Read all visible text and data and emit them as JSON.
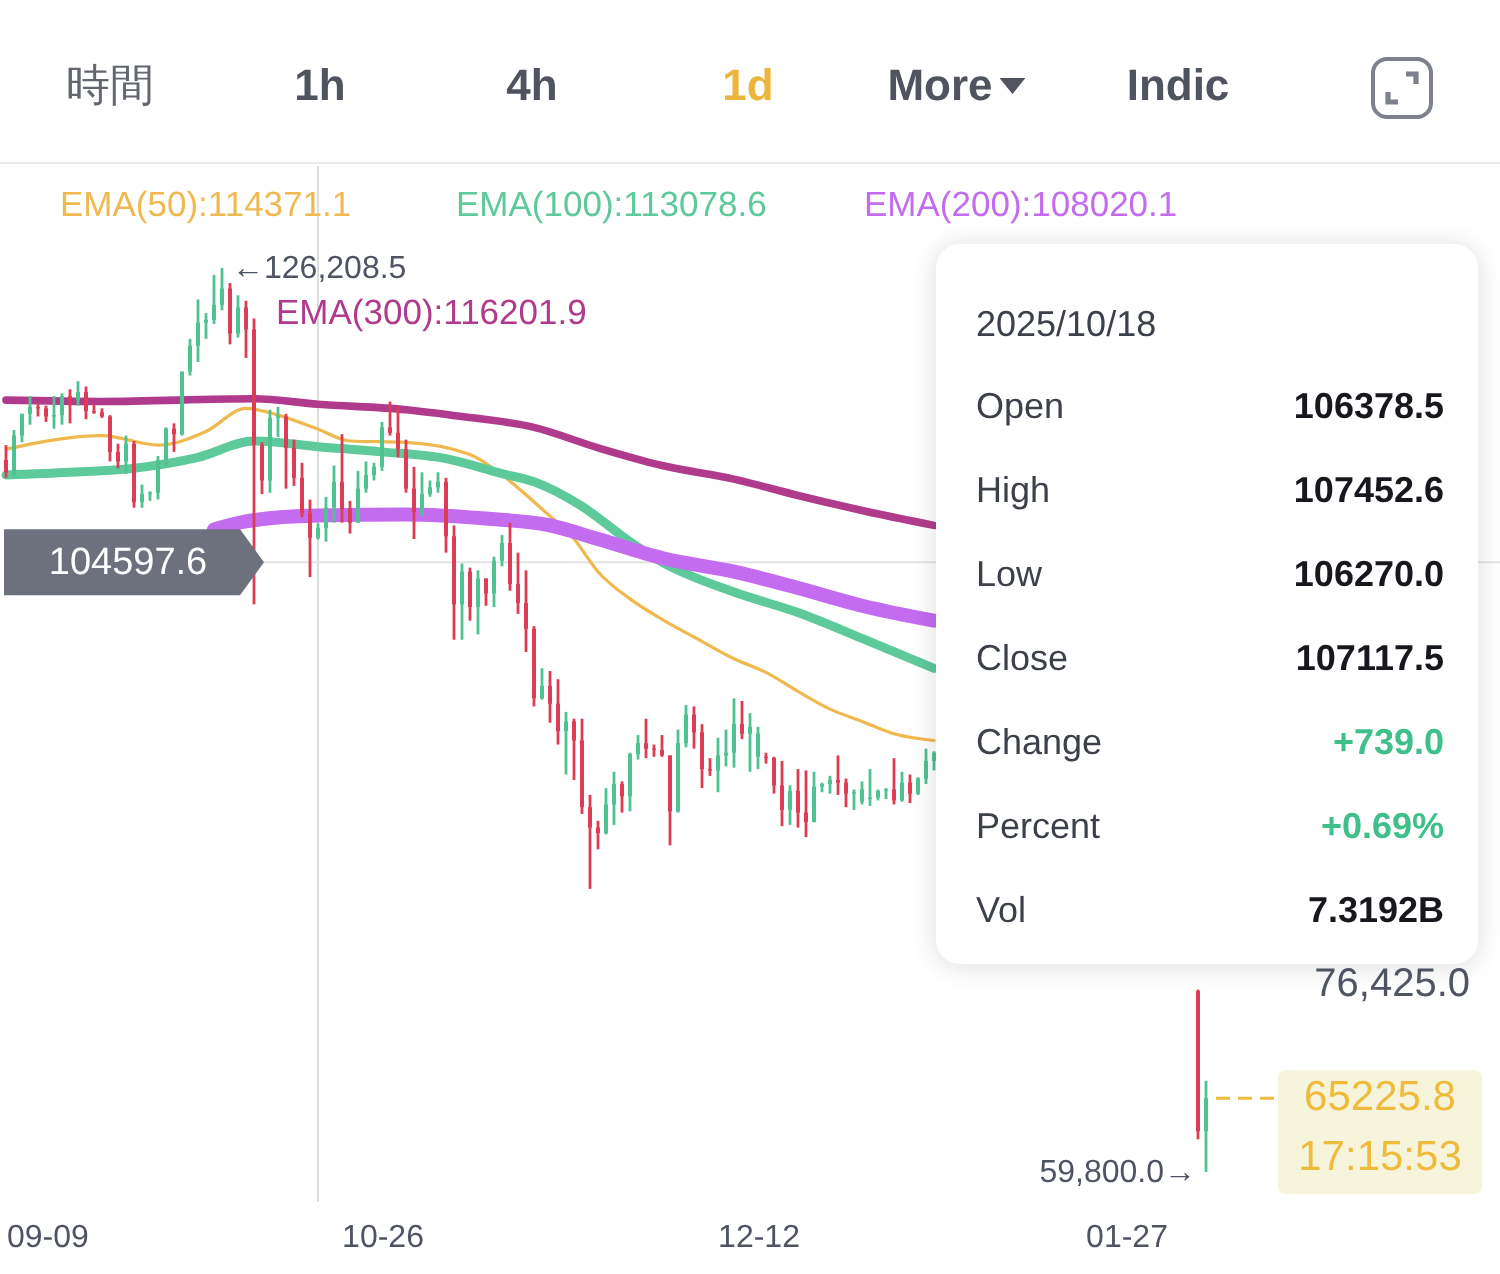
{
  "chart_data": {
    "type": "candlestick",
    "x": [
      "2025-09-09",
      "2025-09-10",
      "2025-09-11",
      "2025-09-12",
      "2025-09-13",
      "2025-09-14",
      "2025-09-15",
      "2025-09-16",
      "2025-09-17",
      "2025-09-18",
      "2025-09-19",
      "2025-09-20",
      "2025-09-21",
      "2025-09-22",
      "2025-09-23",
      "2025-09-24",
      "2025-09-25",
      "2025-09-26",
      "2025-09-27",
      "2025-09-28",
      "2025-09-29",
      "2025-09-30",
      "2025-10-01",
      "2025-10-02",
      "2025-10-03",
      "2025-10-04",
      "2025-10-05",
      "2025-10-06",
      "2025-10-07",
      "2025-10-08",
      "2025-10-09",
      "2025-10-10",
      "2025-10-11",
      "2025-10-12",
      "2025-10-13",
      "2025-10-14",
      "2025-10-15",
      "2025-10-16",
      "2025-10-17",
      "2025-10-18",
      "2025-10-19",
      "2025-10-20",
      "2025-10-21",
      "2025-10-22",
      "2025-10-23",
      "2025-10-24",
      "2025-10-25",
      "2025-10-26",
      "2025-10-27",
      "2025-10-28",
      "2025-10-29",
      "2025-10-30",
      "2025-10-31",
      "2025-11-01",
      "2025-11-02",
      "2025-11-03",
      "2025-11-04",
      "2025-11-05",
      "2025-11-06",
      "2025-11-07",
      "2025-11-08",
      "2025-11-09",
      "2025-11-10",
      "2025-11-11",
      "2025-11-12",
      "2025-11-13",
      "2025-11-14",
      "2025-11-15",
      "2025-11-16",
      "2025-11-17",
      "2025-11-18",
      "2025-11-19",
      "2025-11-20",
      "2025-11-21",
      "2025-11-22",
      "2025-11-23",
      "2025-11-24",
      "2025-11-25",
      "2025-11-26",
      "2025-11-27",
      "2025-11-28",
      "2025-11-29",
      "2025-11-30",
      "2025-12-01",
      "2025-12-02",
      "2025-12-03",
      "2025-12-04",
      "2025-12-05",
      "2025-12-06",
      "2025-12-07",
      "2025-12-08",
      "2025-12-09",
      "2025-12-10",
      "2025-12-11",
      "2025-12-12",
      "2025-12-13",
      "2025-12-14",
      "2025-12-15",
      "2025-12-16",
      "2025-12-17",
      "2025-12-18",
      "2025-12-19",
      "2025-12-20",
      "2025-12-21",
      "2025-12-22",
      "2025-12-23",
      "2025-12-24",
      "2025-12-25",
      "2025-12-26",
      "2025-12-27",
      "2025-12-28",
      "2025-12-29",
      "2025-12-30",
      "2025-12-31",
      "2026-01-01",
      "2026-01-02",
      "2026-01-03",
      "2026-02-05",
      "2026-02-06"
    ],
    "ohlc": [
      [
        112100,
        113200,
        110800,
        111200
      ],
      [
        111200,
        114300,
        110900,
        113900
      ],
      [
        113900,
        115500,
        113400,
        115500
      ],
      [
        115500,
        116800,
        114700,
        116000
      ],
      [
        116000,
        116300,
        115300,
        115900
      ],
      [
        115900,
        116100,
        114900,
        115300
      ],
      [
        115300,
        116800,
        114400,
        115400
      ],
      [
        115400,
        117000,
        114700,
        116800
      ],
      [
        116800,
        117300,
        114800,
        116500
      ],
      [
        116500,
        117900,
        116100,
        117100
      ],
      [
        117100,
        117500,
        115100,
        115700
      ],
      [
        115700,
        116200,
        115500,
        115600
      ],
      [
        115600,
        115900,
        115200,
        115300
      ],
      [
        115300,
        115400,
        112000,
        112700
      ],
      [
        112700,
        113300,
        111500,
        112000
      ],
      [
        112000,
        113900,
        111100,
        113300
      ],
      [
        113300,
        113500,
        108600,
        109000
      ],
      [
        109000,
        110300,
        108600,
        109600
      ],
      [
        109600,
        109800,
        109100,
        109700
      ],
      [
        109700,
        112400,
        109200,
        112100
      ],
      [
        112100,
        114500,
        111600,
        114400
      ],
      [
        114400,
        114800,
        112700,
        114000
      ],
      [
        114000,
        118600,
        113900,
        118600
      ],
      [
        118600,
        121000,
        118300,
        120500
      ],
      [
        120500,
        123900,
        119300,
        122200
      ],
      [
        122200,
        122900,
        121000,
        122400
      ],
      [
        122400,
        125700,
        122100,
        123500
      ],
      [
        123500,
        126208.5,
        123100,
        124700
      ],
      [
        124700,
        125100,
        120600,
        121400
      ],
      [
        121400,
        124200,
        121100,
        123300
      ],
      [
        123300,
        123800,
        119600,
        121700
      ],
      [
        121700,
        122500,
        101500,
        113200
      ],
      [
        113200,
        113400,
        109600,
        110600
      ],
      [
        110600,
        115800,
        109700,
        115200
      ],
      [
        115200,
        116000,
        113800,
        115300
      ],
      [
        115300,
        115500,
        110000,
        113000
      ],
      [
        113000,
        113600,
        110200,
        110800
      ],
      [
        110800,
        111900,
        107900,
        108200
      ],
      [
        108200,
        109200,
        103500,
        106400
      ],
      [
        106378.5,
        107452.6,
        106270.0,
        107117.5
      ],
      [
        107100,
        109400,
        106100,
        108600
      ],
      [
        108600,
        111700,
        107500,
        110500
      ],
      [
        110500,
        114000,
        107500,
        108500
      ],
      [
        108500,
        109100,
        106700,
        107500
      ],
      [
        107500,
        111300,
        107500,
        110000
      ],
      [
        110000,
        112000,
        109700,
        111000
      ],
      [
        111000,
        111900,
        110600,
        111600
      ],
      [
        111600,
        114900,
        111300,
        114500
      ],
      [
        114500,
        116400,
        113900,
        114100
      ],
      [
        114100,
        116100,
        112300,
        112900
      ],
      [
        112900,
        113600,
        109700,
        110000
      ],
      [
        110000,
        111600,
        106300,
        108300
      ],
      [
        108300,
        111200,
        108000,
        109600
      ],
      [
        109600,
        110600,
        109400,
        110100
      ],
      [
        110100,
        111200,
        109700,
        110500
      ],
      [
        110500,
        110800,
        105300,
        106500
      ],
      [
        106500,
        107300,
        98900,
        101500
      ],
      [
        101500,
        104500,
        98900,
        103900
      ],
      [
        103900,
        104200,
        100300,
        101300
      ],
      [
        101300,
        104000,
        99300,
        103400
      ],
      [
        103400,
        103400,
        101400,
        102300
      ],
      [
        102300,
        105000,
        101300,
        104700
      ],
      [
        104700,
        106600,
        104300,
        106000
      ],
      [
        106000,
        107500,
        102500,
        103000
      ],
      [
        103000,
        105300,
        100800,
        101600
      ],
      [
        101600,
        104000,
        98000,
        99700
      ],
      [
        99700,
        99900,
        94000,
        94600
      ],
      [
        94600,
        96800,
        94500,
        95500
      ],
      [
        95500,
        96600,
        92800,
        94200
      ],
      [
        94200,
        96000,
        91200,
        92200
      ],
      [
        92200,
        93600,
        89000,
        92900
      ],
      [
        92900,
        93100,
        88600,
        91500
      ],
      [
        91500,
        93100,
        86100,
        86600
      ],
      [
        86600,
        87500,
        80600,
        85100
      ],
      [
        85100,
        85600,
        83500,
        84700
      ],
      [
        84700,
        88000,
        84600,
        86800
      ],
      [
        86800,
        89200,
        85300,
        88300
      ],
      [
        88300,
        88500,
        86200,
        87400
      ],
      [
        87400,
        90600,
        86300,
        90500
      ],
      [
        90500,
        91900,
        90100,
        91300
      ],
      [
        91300,
        93100,
        90200,
        90900
      ],
      [
        90900,
        91200,
        90300,
        90800
      ],
      [
        90800,
        91900,
        90300,
        90400
      ],
      [
        90400,
        90400,
        83800,
        86300
      ],
      [
        86300,
        92300,
        86200,
        91300
      ],
      [
        91300,
        94100,
        91000,
        93400
      ],
      [
        93400,
        94000,
        90900,
        92100
      ],
      [
        92100,
        92700,
        88000,
        89400
      ],
      [
        89400,
        90200,
        88900,
        89300
      ],
      [
        89300,
        91700,
        87700,
        90400
      ],
      [
        90400,
        92300,
        89600,
        90600
      ],
      [
        90600,
        94600,
        89500,
        92700
      ],
      [
        92700,
        94400,
        91600,
        92000
      ],
      [
        92000,
        93500,
        89200,
        92500
      ],
      [
        90300,
        92500,
        89400,
        92000
      ],
      [
        90300,
        90600,
        89800,
        90200
      ],
      [
        90200,
        90300,
        87600,
        88200
      ],
      [
        88200,
        90000,
        85200,
        86400
      ],
      [
        86400,
        88200,
        85300,
        87800
      ],
      [
        87800,
        89400,
        85100,
        86200
      ],
      [
        86200,
        89300,
        84400,
        85500
      ],
      [
        85500,
        89200,
        85500,
        88100
      ],
      [
        88100,
        88400,
        87700,
        88300
      ],
      [
        88300,
        88900,
        87600,
        88600
      ],
      [
        88600,
        90400,
        87500,
        88400
      ],
      [
        88400,
        88700,
        86600,
        87600
      ],
      [
        87600,
        87900,
        86400,
        87700
      ],
      [
        87000,
        88500,
        86800,
        87900
      ],
      [
        87200,
        89400,
        86700,
        87300
      ],
      [
        87300,
        87900,
        87100,
        87800
      ],
      [
        87800,
        88000,
        87200,
        87900
      ],
      [
        87900,
        90200,
        86800,
        87100
      ],
      [
        87100,
        89200,
        87000,
        88400
      ],
      [
        88400,
        89000,
        86900,
        87600
      ],
      [
        87600,
        88800,
        87500,
        88700
      ],
      [
        88700,
        90900,
        88300,
        90000
      ],
      [
        90000,
        90700,
        89300,
        90600
      ],
      [
        73100,
        73200,
        62200,
        62800
      ],
      [
        62800,
        66500,
        59800,
        65225.8
      ]
    ],
    "colors": [
      "#dc3d55",
      "#4fc292",
      "#4fc292",
      "#4fc292",
      "#dc3d55",
      "#dc3d55",
      "#4fc292",
      "#4fc292",
      "#dc3d55",
      "#4fc292",
      "#dc3d55",
      "#dc3d55",
      "#dc3d55",
      "#dc3d55",
      "#dc3d55",
      "#4fc292",
      "#dc3d55",
      "#4fc292",
      "#4fc292",
      "#4fc292",
      "#4fc292",
      "#dc3d55",
      "#4fc292",
      "#4fc292",
      "#4fc292",
      "#4fc292",
      "#4fc292",
      "#4fc292",
      "#dc3d55",
      "#4fc292",
      "#dc3d55",
      "#dc3d55",
      "#dc3d55",
      "#4fc292",
      "#4fc292",
      "#dc3d55",
      "#dc3d55",
      "#dc3d55",
      "#dc3d55",
      "#4fc292",
      "#4fc292",
      "#4fc292",
      "#dc3d55",
      "#dc3d55",
      "#4fc292",
      "#4fc292",
      "#4fc292",
      "#4fc292",
      "#dc3d55",
      "#dc3d55",
      "#dc3d55",
      "#dc3d55",
      "#4fc292",
      "#4fc292",
      "#4fc292",
      "#dc3d55",
      "#dc3d55",
      "#4fc292",
      "#dc3d55",
      "#4fc292",
      "#dc3d55",
      "#4fc292",
      "#4fc292",
      "#dc3d55",
      "#dc3d55",
      "#dc3d55",
      "#dc3d55",
      "#4fc292",
      "#dc3d55",
      "#dc3d55",
      "#4fc292",
      "#dc3d55",
      "#dc3d55",
      "#dc3d55",
      "#dc3d55",
      "#4fc292",
      "#4fc292",
      "#dc3d55",
      "#4fc292",
      "#4fc292",
      "#dc3d55",
      "#dc3d55",
      "#dc3d55",
      "#dc3d55",
      "#4fc292",
      "#4fc292",
      "#dc3d55",
      "#dc3d55",
      "#dc3d55",
      "#4fc292",
      "#4fc292",
      "#4fc292",
      "#dc3d55",
      "#4fc292",
      "#4fc292",
      "#dc3d55",
      "#dc3d55",
      "#dc3d55",
      "#4fc292",
      "#dc3d55",
      "#dc3d55",
      "#4fc292",
      "#4fc292",
      "#4fc292",
      "#dc3d55",
      "#dc3d55",
      "#4fc292",
      "#4fc292",
      "#4fc292",
      "#4fc292",
      "#4fc292",
      "#dc3d55",
      "#4fc292",
      "#dc3d55",
      "#4fc292",
      "#4fc292",
      "#4fc292",
      "#dc3d55",
      "#4fc292"
    ],
    "series": [
      {
        "name": "EMA(50):114371.1",
        "type": "line",
        "color": "#f0b94f",
        "x": [
          "2025-09-09",
          "2025-09-21",
          "2025-09-28",
          "2025-10-04",
          "2025-10-09",
          "2025-10-13",
          "2025-10-18",
          "2025-10-22",
          "2025-10-29",
          "2025-11-06",
          "2025-11-10",
          "2025-11-15",
          "2025-11-19",
          "2025-11-22",
          "2025-11-26",
          "2025-11-30",
          "2025-12-04",
          "2025-12-09",
          "2025-12-13",
          "2025-12-17",
          "2025-12-21",
          "2025-12-25",
          "2025-12-29",
          "2026-01-03"
        ],
        "values": [
          112900,
          113900,
          113200,
          114200,
          115900,
          115400,
          114371.1,
          113500,
          113400,
          112500,
          111000,
          108500,
          106300,
          103900,
          101900,
          100400,
          99100,
          97500,
          96500,
          95100,
          93800,
          92900,
          92000,
          91500
        ]
      },
      {
        "name": "EMA(100):113078.6",
        "type": "line",
        "color": "#5ec99b",
        "x": [
          "2025-09-09",
          "2025-09-17",
          "2025-09-25",
          "2025-10-03",
          "2025-10-10",
          "2025-10-18",
          "2025-10-26",
          "2025-11-03",
          "2025-11-10",
          "2025-11-14",
          "2025-11-20",
          "2025-11-26",
          "2025-11-30",
          "2025-12-09",
          "2025-12-17",
          "2025-12-25",
          "2026-01-03"
        ],
        "values": [
          111000,
          111200,
          111500,
          112300,
          113500,
          113078.6,
          112700,
          112200,
          111100,
          110500,
          108700,
          106100,
          104600,
          102400,
          100900,
          99000,
          96800
        ]
      },
      {
        "name": "EMA(200):108020.1",
        "type": "line",
        "color": "#c46cf0",
        "x": [
          "2025-10-05",
          "2025-10-09",
          "2025-10-18",
          "2025-10-29",
          "2025-11-08",
          "2025-11-16",
          "2025-11-22",
          "2025-11-30",
          "2025-12-09",
          "2025-12-17",
          "2025-12-25",
          "2026-01-03"
        ],
        "values": [
          107000,
          107600,
          108020.1,
          108100,
          107800,
          107300,
          106300,
          104900,
          103900,
          102700,
          101400,
          100300
        ]
      },
      {
        "name": "EMA(300):116201.9",
        "type": "line",
        "color": "#b03b8c",
        "x": [
          "2025-09-09",
          "2025-09-21",
          "2025-10-10",
          "2025-10-18",
          "2025-10-29",
          "2025-11-05",
          "2025-11-14",
          "2025-11-22",
          "2025-11-30",
          "2025-12-09",
          "2025-12-17",
          "2025-12-25",
          "2026-01-03"
        ],
        "values": [
          116500,
          116400,
          116600,
          116201.9,
          115800,
          115300,
          114500,
          113000,
          111700,
          110700,
          109500,
          108400,
          107300
        ]
      }
    ],
    "xlim": [
      "2025-09-08T18:00",
      "2026-03-15T06:00"
    ],
    "xticks": [
      {
        "value": "2025-09-09",
        "label": "09-09"
      },
      {
        "value": "2025-10-26",
        "label": "10-26"
      },
      {
        "value": "2025-12-12",
        "label": "12-12"
      },
      {
        "value": "2026-01-27",
        "label": "01-27"
      }
    ],
    "tick_labels": "x",
    "legend": "top left",
    "ref_lines": [
      {
        "axis": "x",
        "value": "2025-10-18",
        "color": "#dcdcdc"
      },
      {
        "axis": "y",
        "value": 104597.6,
        "label": "104597.6",
        "color": "#e4e4e4"
      },
      {
        "axis": "y",
        "value": 65225.8,
        "label": "65225.8",
        "color": "#efbb3c",
        "line_style": "dashed"
      }
    ],
    "annotations": [
      "時間",
      "1h",
      "4h",
      "1d",
      "More",
      "Indic",
      "2025/10/18",
      "Open",
      "106378.5",
      "High",
      "107452.6",
      "Low",
      "106270.0",
      "Close",
      "107117.5",
      "Change",
      "+739.0",
      "Percent",
      "+0.69%",
      "Vol",
      "7.3192B",
      "76,425.0",
      "17:15:53",
      {
        "text": "←126,208.5",
        "x": "2025-10-06",
        "y": 126208.5
      },
      {
        "text": "59,800.0→",
        "x": "2026-02-06",
        "y": 59800
      }
    ]
  }
}
